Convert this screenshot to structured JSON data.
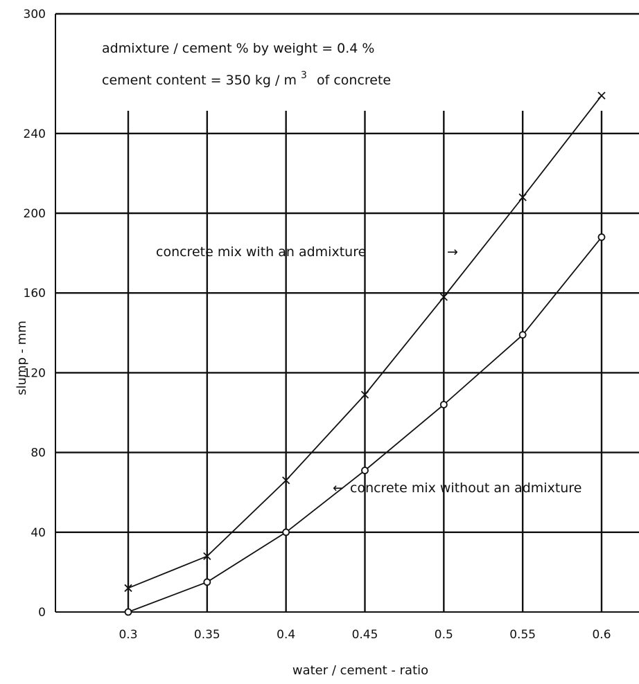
{
  "chart_data": {
    "type": "line",
    "xlabel": "water / cement  - ratio",
    "ylabel": "slump  -  mm",
    "x": [
      0.3,
      0.35,
      0.4,
      0.45,
      0.5,
      0.55,
      0.6
    ],
    "x_tick_labels": [
      "0.3",
      "0.35",
      "0.4",
      "0.45",
      "0.5",
      "0.55",
      "0.6"
    ],
    "y_ticks": [
      0,
      40,
      80,
      120,
      160,
      200,
      240,
      300
    ],
    "xlim": [
      0.3,
      0.6
    ],
    "ylim": [
      0,
      300
    ],
    "grid": true,
    "annotations": {
      "admixture_note": "admixture / cement %  by weight  =  0.4  %",
      "cement_note": "cement content    =  350  kg / m",
      "cement_note_sup": "3",
      "cement_note_tail": "of concrete"
    },
    "series": [
      {
        "label": "concrete  mix  with an  admixture",
        "arrow": "→",
        "marker": "x",
        "values": [
          12,
          28,
          66,
          109,
          158,
          208,
          259
        ]
      },
      {
        "label": "concrete mix   without  an  admixture",
        "arrow": "←",
        "marker": "o",
        "values": [
          0,
          15,
          40,
          71,
          104,
          139,
          188
        ]
      }
    ]
  }
}
